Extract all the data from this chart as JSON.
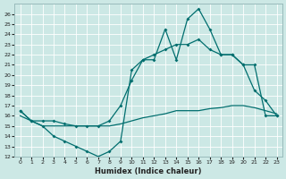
{
  "xlabel": "Humidex (Indice chaleur)",
  "background_color": "#cce8e5",
  "grid_color": "#ffffff",
  "line_color": "#006e6e",
  "ylim": [
    12,
    27
  ],
  "xlim": [
    -0.5,
    23.5
  ],
  "yticks": [
    12,
    13,
    14,
    15,
    16,
    17,
    18,
    19,
    20,
    21,
    22,
    23,
    24,
    25,
    26
  ],
  "xticks": [
    0,
    1,
    2,
    3,
    4,
    5,
    6,
    7,
    8,
    9,
    10,
    11,
    12,
    13,
    14,
    15,
    16,
    17,
    18,
    19,
    20,
    21,
    22,
    23
  ],
  "curve1_x": [
    0,
    1,
    2,
    3,
    4,
    5,
    6,
    7,
    8,
    9,
    10,
    11,
    12,
    13,
    14,
    15,
    16,
    17,
    18,
    19,
    20,
    21,
    22,
    23
  ],
  "curve1_y": [
    16.5,
    15.5,
    15.0,
    14.0,
    13.5,
    13.0,
    12.5,
    12.0,
    12.5,
    13.5,
    20.5,
    21.5,
    21.5,
    24.5,
    21.5,
    25.5,
    26.5,
    24.5,
    22.0,
    22.0,
    21.0,
    18.5,
    17.5,
    16.0
  ],
  "curve2_x": [
    0,
    1,
    2,
    3,
    4,
    5,
    6,
    7,
    8,
    9,
    10,
    11,
    12,
    13,
    14,
    15,
    16,
    17,
    18,
    19,
    20,
    21,
    22,
    23
  ],
  "curve2_y": [
    16.5,
    15.5,
    15.5,
    15.5,
    15.2,
    15.0,
    15.0,
    15.0,
    15.5,
    17.0,
    19.5,
    21.5,
    22.0,
    22.5,
    23.0,
    23.0,
    23.5,
    22.5,
    22.0,
    22.0,
    21.0,
    21.0,
    16.0,
    16.0
  ],
  "curve3_x": [
    0,
    1,
    2,
    3,
    4,
    5,
    6,
    7,
    8,
    9,
    10,
    11,
    12,
    13,
    14,
    15,
    16,
    17,
    18,
    19,
    20,
    21,
    22,
    23
  ],
  "curve3_y": [
    16.0,
    15.5,
    15.0,
    15.0,
    15.0,
    15.0,
    15.0,
    15.0,
    15.0,
    15.2,
    15.5,
    15.8,
    16.0,
    16.2,
    16.5,
    16.5,
    16.5,
    16.7,
    16.8,
    17.0,
    17.0,
    16.8,
    16.5,
    16.2
  ]
}
